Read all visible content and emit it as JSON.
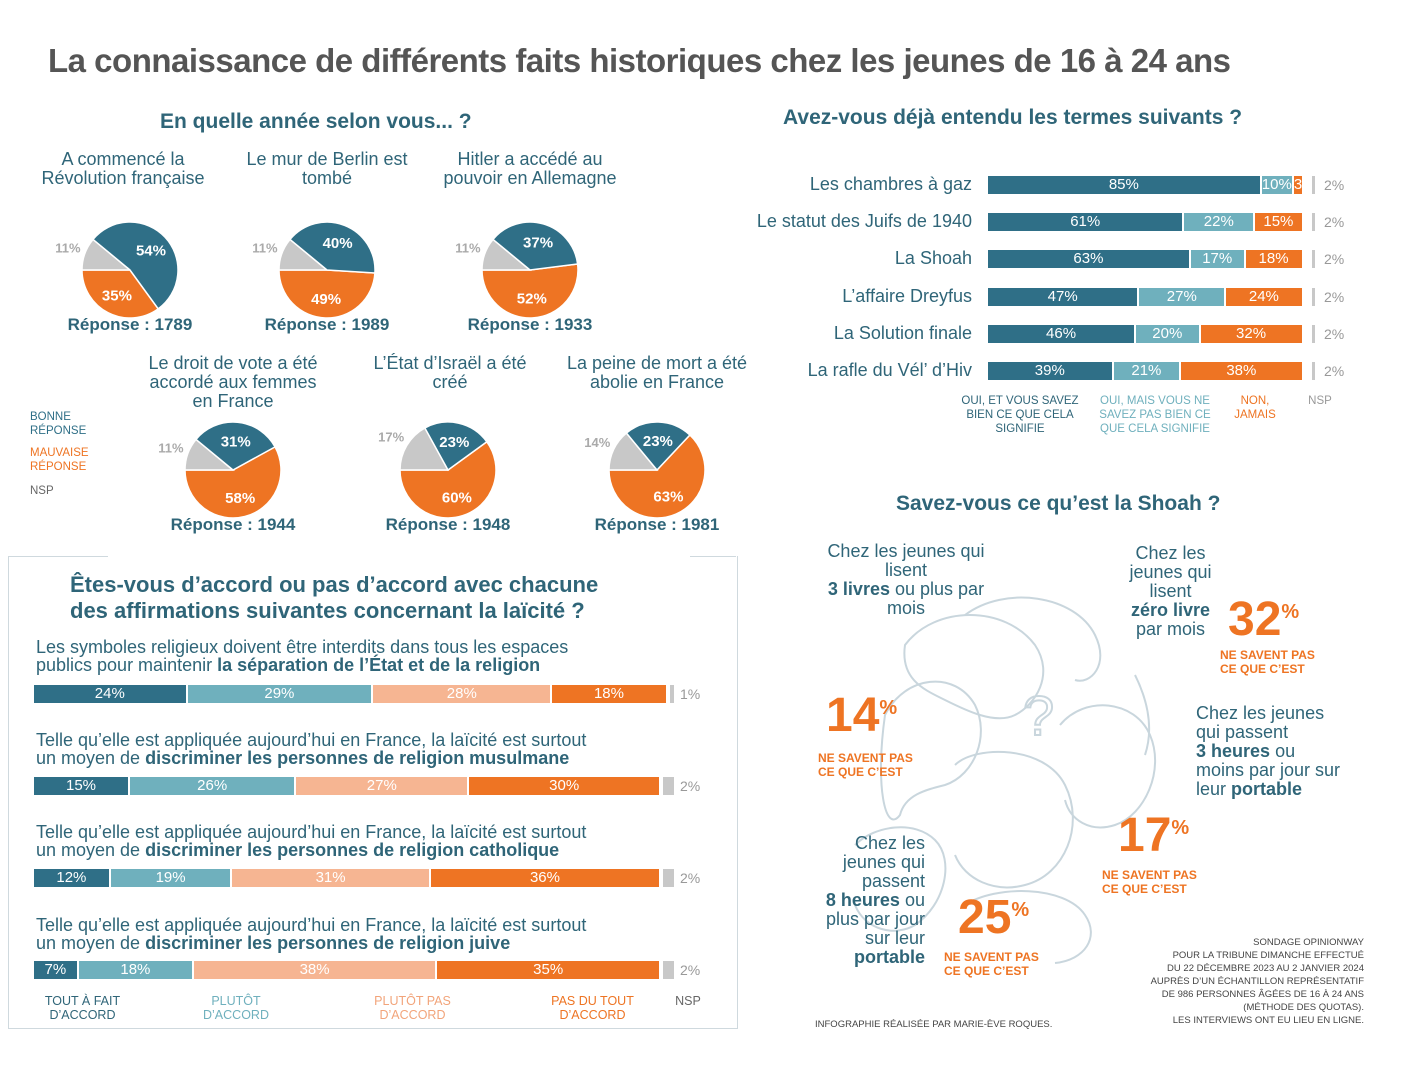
{
  "title": "La connaissance de différents faits historiques chez les jeunes de 16 à 24 ans",
  "colors": {
    "good": "#2f6f87",
    "bad": "#ee7423",
    "nsp": "#c8c8c8",
    "light_teal": "#6fb0bd",
    "light_orange": "#f6b592"
  },
  "year_section": {
    "title": "En quelle année selon vous... ?",
    "legend": {
      "good": "BONNE RÉPONSE",
      "bad": "MAUVAISE RÉPONSE",
      "nsp": "NSP"
    }
  },
  "hear_section": {
    "title": "Avez-vous déjà entendu les termes suivants ?",
    "col_labels": [
      "OUI, ET VOUS SAVEZ BIEN CE QUE CELA SIGNIFIE",
      "OUI, MAIS VOUS NE SAVEZ PAS BIEN CE QUE CELA SIGNIFIE",
      "NON, JAMAIS",
      "NSP"
    ]
  },
  "laicite_section": {
    "title_line1": "Êtes-vous d’accord ou pas d’accord avec chacune",
    "title_line2": "des affirmations suivantes concernant la laïcité ?",
    "statements": [
      {
        "line1": "Les symboles religieux doivent être interdits dans tous les espaces",
        "line2_plain": "publics pour maintenir ",
        "line2_bold": "la séparation de l’État et de la religion"
      },
      {
        "line1": "Telle qu’elle est appliquée aujourd’hui en France, la laïcité est surtout",
        "line2_plain": "un moyen de ",
        "line2_bold": "discriminer les personnes de religion musulmane"
      },
      {
        "line1": "Telle qu’elle est appliquée aujourd’hui en France, la laïcité est surtout",
        "line2_plain": "un moyen de ",
        "line2_bold": "discriminer les personnes de religion catholique"
      },
      {
        "line1": "Telle qu’elle est appliquée aujourd’hui en France, la laïcité est surtout",
        "line2_plain": "un moyen de ",
        "line2_bold": "discriminer les personnes de religion juive"
      }
    ],
    "legend": [
      "TOUT À FAIT D’ACCORD",
      "PLUTÔT D’ACCORD",
      "PLUTÔT PAS D’ACCORD",
      "PAS DU TOUT D’ACCORD",
      "NSP"
    ]
  },
  "shoah_section": {
    "title": "Savez-vous ce qu’est la Shoah ?",
    "nsv_label": "NE SAVENT PAS CE QUE C’EST",
    "groups": [
      {
        "pre": "Chez les jeunes qui lisent",
        "bold": "3 livres",
        "post": "ou plus par mois",
        "value": "14"
      },
      {
        "pre": "Chez les jeunes qui lisent",
        "bold": "zéro livre",
        "post": "par mois",
        "value": "32"
      },
      {
        "pre": "Chez les jeunes qui passent",
        "bold": "3 heures",
        "post": "ou moins par jour sur leur",
        "bold2": "portable",
        "value": "17"
      },
      {
        "pre": "Chez les jeunes qui passent",
        "bold": "8 heures",
        "post": "ou plus par jour sur leur",
        "bold2": "portable",
        "value": "25"
      }
    ],
    "question_mark": "?"
  },
  "footer": {
    "credit": "INFOGRAPHIE RÉALISÉE PAR MARIE-ÈVE ROQUES.",
    "source_lines": [
      "SONDAGE OPINIONWAY",
      "POUR LA TRIBUNE DIMANCHE EFFECTUÉ",
      "DU 22 DÉCEMBRE 2023 AU 2 JANVIER 2024",
      "AUPRÈS D’UN ÉCHANTILLON REPRÉSENTATIF",
      "DE 986 PERSONNES ÂGÉES DE 16 À 24 ANS",
      "(MÉTHODE DES QUOTAS).",
      "LES INTERVIEWS ONT EU LIEU EN LIGNE."
    ]
  },
  "chart_data": [
    {
      "type": "pie",
      "title": "En quelle année selon vous... ?",
      "pies": [
        {
          "question": "A commencé la Révolution française",
          "answer": "Réponse : 1789",
          "good": 54,
          "bad": 35,
          "nsp": 11
        },
        {
          "question": "Le mur de Berlin est tombé",
          "answer": "Réponse : 1989",
          "good": 40,
          "bad": 49,
          "nsp": 11
        },
        {
          "question": "Hitler a accédé au pouvoir en Allemagne",
          "answer": "Réponse : 1933",
          "good": 37,
          "bad": 52,
          "nsp": 11
        },
        {
          "question": "Le droit de vote a été accordé aux femmes en France",
          "answer": "Réponse : 1944",
          "good": 31,
          "bad": 58,
          "nsp": 11
        },
        {
          "question": "L’État d’Israël a été créé",
          "answer": "Réponse : 1948",
          "good": 23,
          "bad": 60,
          "nsp": 17
        },
        {
          "question": "La peine de mort a été abolie en France",
          "answer": "Réponse : 1981",
          "good": 23,
          "bad": 63,
          "nsp": 14
        }
      ]
    },
    {
      "type": "bar",
      "orientation": "horizontal-stacked",
      "title": "Avez-vous déjà entendu les termes suivants ?",
      "categories": [
        "Les chambres à gaz",
        "Le statut des Juifs de 1940",
        "La Shoah",
        "L’affaire Dreyfus",
        "La Solution finale",
        "La rafle du Vél’ d’Hiv"
      ],
      "series": [
        {
          "name": "OUI, ET VOUS SAVEZ BIEN CE QUE CELA SIGNIFIE",
          "values": [
            85,
            61,
            63,
            47,
            46,
            39
          ]
        },
        {
          "name": "OUI, MAIS VOUS NE SAVEZ PAS BIEN CE QUE CELA SIGNIFIE",
          "values": [
            10,
            22,
            17,
            27,
            20,
            21
          ]
        },
        {
          "name": "NON, JAMAIS",
          "values": [
            3,
            15,
            18,
            24,
            32,
            38
          ]
        },
        {
          "name": "NSP",
          "values": [
            2,
            2,
            2,
            2,
            2,
            2
          ]
        }
      ]
    },
    {
      "type": "bar",
      "orientation": "horizontal-stacked",
      "title": "Êtes-vous d’accord ou pas d’accord avec chacune des affirmations suivantes concernant la laïcité ?",
      "categories": [
        "séparation de l’État et de la religion",
        "religion musulmane",
        "religion catholique",
        "religion juive"
      ],
      "series": [
        {
          "name": "TOUT À FAIT D’ACCORD",
          "values": [
            24,
            15,
            12,
            7
          ]
        },
        {
          "name": "PLUTÔT D’ACCORD",
          "values": [
            29,
            26,
            19,
            18
          ]
        },
        {
          "name": "PLUTÔT PAS D’ACCORD",
          "values": [
            28,
            27,
            31,
            38
          ]
        },
        {
          "name": "PAS DU TOUT D’ACCORD",
          "values": [
            18,
            30,
            36,
            35
          ]
        },
        {
          "name": "NSP",
          "values": [
            1,
            2,
            2,
            2
          ]
        }
      ]
    },
    {
      "type": "table",
      "title": "Savez-vous ce qu’est la Shoah ?",
      "rows": [
        {
          "group": "3 livres ou plus par mois",
          "ne_savent_pas": 14
        },
        {
          "group": "zéro livre par mois",
          "ne_savent_pas": 32
        },
        {
          "group": "3 heures ou moins par jour sur leur portable",
          "ne_savent_pas": 17
        },
        {
          "group": "8 heures ou plus par jour sur leur portable",
          "ne_savent_pas": 25
        }
      ]
    }
  ]
}
